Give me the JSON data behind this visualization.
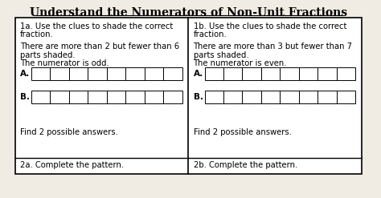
{
  "title": "Understand the Numerators of Non-Unit Fractions",
  "bg_color": "#f0ece4",
  "box_bg": "#ffffff",
  "left_line1": "1a. Use the clues to shade the correct",
  "left_line2": "fraction.",
  "left_clue1": "There are more than 2 but fewer than 6",
  "left_clue2": "parts shaded.",
  "left_clue3": "The numerator is odd.",
  "left_footer": "Find 2 possible answers.",
  "right_line1": "1b. Use the clues to shade the correct",
  "right_line2": "fraction.",
  "right_clue1": "There are more than 3 but fewer than 7",
  "right_clue2": "parts shaded.",
  "right_clue3": "The numerator is even.",
  "right_footer": "Find 2 possible answers.",
  "bottom_left": "2a. Complete the pattern.",
  "bottom_right": "2b. Complete the pattern.",
  "num_cells": 8,
  "title_fontsize": 10,
  "body_fontsize": 7.2,
  "label_fontsize": 7.5
}
